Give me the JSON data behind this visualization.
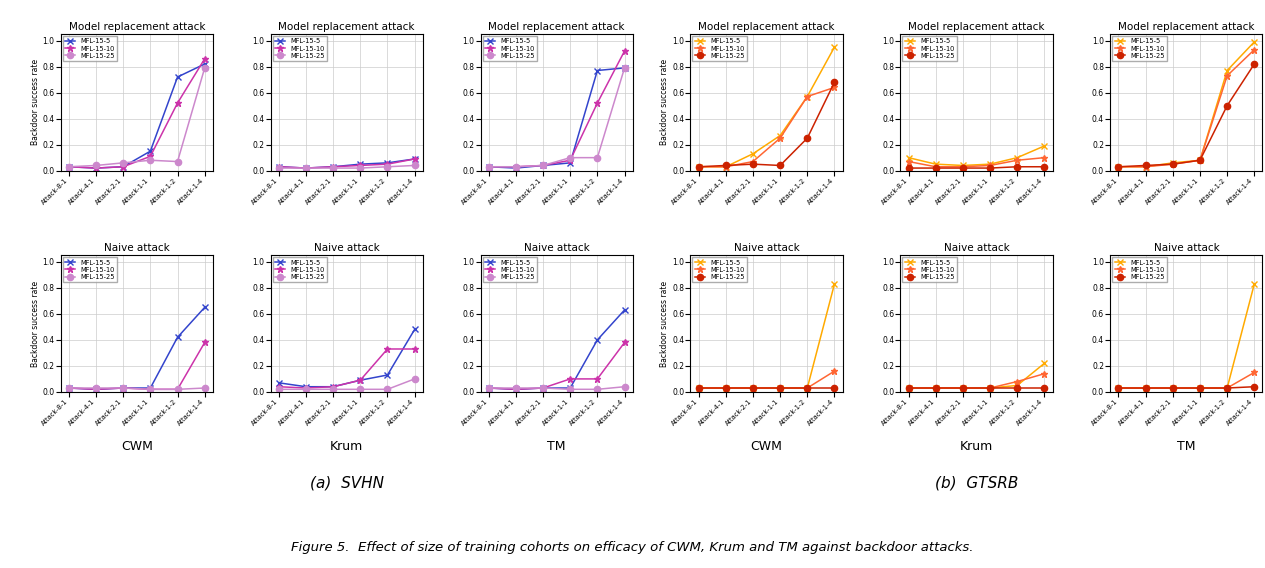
{
  "x_labels": [
    "Attack-8-1",
    "Attack-4-1",
    "Attack-2-1",
    "Attack-1-1",
    "Attack-1-2",
    "Attack-1-4"
  ],
  "svhn_colors": [
    "#3344cc",
    "#cc33aa",
    "#cc88cc"
  ],
  "svhn_markers": [
    "x",
    "*",
    "o"
  ],
  "gtsrb_colors": [
    "#ffaa00",
    "#ff6633",
    "#cc2200"
  ],
  "gtsrb_markers": [
    "x",
    "*",
    "o"
  ],
  "legends": [
    "MFL-15-5",
    "MFL-15-10",
    "MFL-15-25"
  ],
  "col_labels_svhn": [
    "CWM",
    "Krum",
    "TM"
  ],
  "col_labels_gtsrb": [
    "CWM",
    "Krum",
    "TM"
  ],
  "subtitle_a": "(a)  SVHN",
  "subtitle_b": "(b)  GTSRB",
  "figure_caption": "Figure 5.  Effect of size of training cohorts on efficacy of CWM, Krum and TM against backdoor attacks.",
  "row_titles": [
    "Model replacement attack",
    "Naive attack"
  ],
  "svhn_model_cwm_mfl5": [
    0.03,
    0.02,
    0.03,
    0.15,
    0.72,
    0.82
  ],
  "svhn_model_cwm_mfl10": [
    0.03,
    0.02,
    0.03,
    0.11,
    0.52,
    0.86
  ],
  "svhn_model_cwm_mfl25": [
    0.03,
    0.04,
    0.06,
    0.08,
    0.07,
    0.79
  ],
  "svhn_model_krum_mfl5": [
    0.03,
    0.02,
    0.03,
    0.05,
    0.06,
    0.09
  ],
  "svhn_model_krum_mfl10": [
    0.03,
    0.02,
    0.03,
    0.04,
    0.05,
    0.09
  ],
  "svhn_model_krum_mfl25": [
    0.02,
    0.02,
    0.02,
    0.02,
    0.03,
    0.04
  ],
  "svhn_model_tm_mfl5": [
    0.03,
    0.02,
    0.04,
    0.06,
    0.77,
    0.79
  ],
  "svhn_model_tm_mfl10": [
    0.03,
    0.03,
    0.04,
    0.08,
    0.52,
    0.92
  ],
  "svhn_model_tm_mfl25": [
    0.03,
    0.03,
    0.04,
    0.1,
    0.1,
    0.79
  ],
  "svhn_naive_cwm_mfl5": [
    0.03,
    0.02,
    0.03,
    0.03,
    0.42,
    0.65
  ],
  "svhn_naive_cwm_mfl10": [
    0.03,
    0.02,
    0.03,
    0.02,
    0.02,
    0.38
  ],
  "svhn_naive_cwm_mfl25": [
    0.03,
    0.03,
    0.03,
    0.02,
    0.02,
    0.03
  ],
  "svhn_naive_krum_mfl5": [
    0.07,
    0.04,
    0.04,
    0.09,
    0.13,
    0.48
  ],
  "svhn_naive_krum_mfl10": [
    0.04,
    0.03,
    0.04,
    0.09,
    0.33,
    0.33
  ],
  "svhn_naive_krum_mfl25": [
    0.02,
    0.02,
    0.02,
    0.02,
    0.02,
    0.1
  ],
  "svhn_naive_tm_mfl5": [
    0.03,
    0.02,
    0.03,
    0.03,
    0.4,
    0.63
  ],
  "svhn_naive_tm_mfl10": [
    0.03,
    0.02,
    0.03,
    0.1,
    0.1,
    0.38
  ],
  "svhn_naive_tm_mfl25": [
    0.03,
    0.03,
    0.03,
    0.02,
    0.02,
    0.04
  ],
  "gtsrb_model_cwm_mfl5": [
    0.03,
    0.03,
    0.13,
    0.27,
    0.57,
    0.95
  ],
  "gtsrb_model_cwm_mfl10": [
    0.03,
    0.03,
    0.07,
    0.25,
    0.57,
    0.64
  ],
  "gtsrb_model_cwm_mfl25": [
    0.03,
    0.04,
    0.05,
    0.04,
    0.25,
    0.68
  ],
  "gtsrb_model_krum_mfl5": [
    0.1,
    0.05,
    0.04,
    0.05,
    0.1,
    0.19
  ],
  "gtsrb_model_krum_mfl10": [
    0.07,
    0.03,
    0.03,
    0.04,
    0.08,
    0.1
  ],
  "gtsrb_model_krum_mfl25": [
    0.02,
    0.02,
    0.02,
    0.02,
    0.03,
    0.03
  ],
  "gtsrb_model_tm_mfl5": [
    0.03,
    0.03,
    0.06,
    0.08,
    0.77,
    0.99
  ],
  "gtsrb_model_tm_mfl10": [
    0.03,
    0.03,
    0.05,
    0.08,
    0.73,
    0.93
  ],
  "gtsrb_model_tm_mfl25": [
    0.03,
    0.04,
    0.05,
    0.08,
    0.5,
    0.82
  ],
  "gtsrb_naive_cwm_mfl5": [
    0.03,
    0.03,
    0.03,
    0.03,
    0.03,
    0.83
  ],
  "gtsrb_naive_cwm_mfl10": [
    0.03,
    0.03,
    0.03,
    0.03,
    0.03,
    0.16
  ],
  "gtsrb_naive_cwm_mfl25": [
    0.03,
    0.03,
    0.03,
    0.03,
    0.03,
    0.03
  ],
  "gtsrb_naive_krum_mfl5": [
    0.03,
    0.03,
    0.03,
    0.03,
    0.05,
    0.22
  ],
  "gtsrb_naive_krum_mfl10": [
    0.03,
    0.03,
    0.03,
    0.03,
    0.08,
    0.14
  ],
  "gtsrb_naive_krum_mfl25": [
    0.03,
    0.03,
    0.03,
    0.03,
    0.03,
    0.03
  ],
  "gtsrb_naive_tm_mfl5": [
    0.03,
    0.03,
    0.03,
    0.03,
    0.03,
    0.83
  ],
  "gtsrb_naive_tm_mfl10": [
    0.03,
    0.03,
    0.03,
    0.03,
    0.03,
    0.15
  ],
  "gtsrb_naive_tm_mfl25": [
    0.03,
    0.03,
    0.03,
    0.03,
    0.03,
    0.04
  ]
}
